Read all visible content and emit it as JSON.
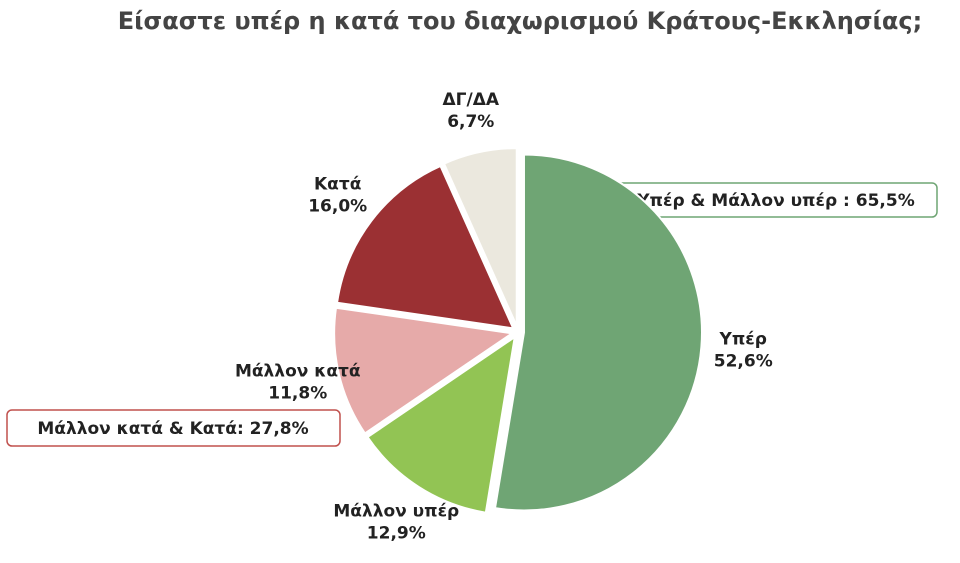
{
  "chart_data": {
    "type": "pie",
    "title": "Είσαστε υπέρ η κατά του διαχωρισμού Κράτους-Εκκλησίας;",
    "categories": [
      "Υπέρ",
      "Μάλλον υπέρ",
      "Μάλλον κατά",
      "Κατά",
      "ΔΓ/ΔΑ"
    ],
    "values": [
      52.6,
      12.9,
      11.8,
      16.0,
      6.7
    ],
    "value_labels": [
      "52,6%",
      "12,9%",
      "11,8%",
      "16,0%",
      "6,7%"
    ],
    "colors": [
      "#6fa574",
      "#92c454",
      "#e6aaa9",
      "#9b3033",
      "#ebe8de"
    ],
    "annotations": [
      "Υπέρ & Μάλλον υπέρ : 65,5%",
      "Μάλλον κατά & Κατά: 27,8%"
    ]
  }
}
